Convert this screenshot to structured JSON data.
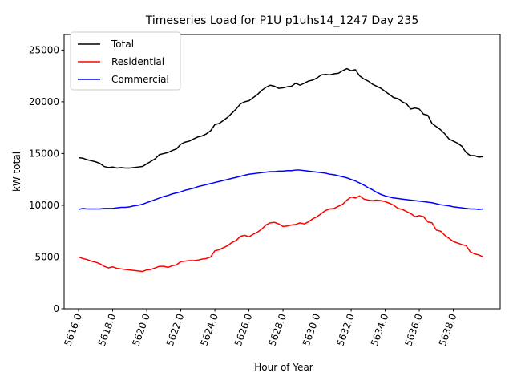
{
  "chart_data": {
    "type": "line",
    "title": "Timeseries Load for P1U p1uhs14_1247  Day 235",
    "xlabel": "Hour of Year",
    "ylabel": "kW total",
    "xlim": [
      5615.15,
      5640.75
    ],
    "ylim": [
      0,
      26500
    ],
    "xticks": [
      5616,
      5618,
      5620,
      5622,
      5624,
      5626,
      5628,
      5630,
      5632,
      5634,
      5636,
      5638
    ],
    "xtick_labels": [
      "5616.0",
      "5618.0",
      "5620.0",
      "5622.0",
      "5624.0",
      "5626.0",
      "5628.0",
      "5630.0",
      "5632.0",
      "5634.0",
      "5636.0",
      "5638.0"
    ],
    "yticks": [
      0,
      5000,
      10000,
      15000,
      20000,
      25000
    ],
    "ytick_labels": [
      "0",
      "5000",
      "10000",
      "15000",
      "20000",
      "25000"
    ],
    "legend_position": "top-left",
    "series": [
      {
        "name": "Total",
        "color": "#000000",
        "x": [
          5616.0,
          5616.25,
          5616.5,
          5616.75,
          5617.0,
          5617.25,
          5617.5,
          5617.75,
          5618.0,
          5618.25,
          5618.5,
          5618.75,
          5619.0,
          5619.25,
          5619.5,
          5619.75,
          5620.0,
          5620.25,
          5620.5,
          5620.75,
          5621.0,
          5621.25,
          5621.5,
          5621.75,
          5622.0,
          5622.25,
          5622.5,
          5622.75,
          5623.0,
          5623.25,
          5623.5,
          5623.75,
          5624.0,
          5624.25,
          5624.5,
          5624.75,
          5625.0,
          5625.25,
          5625.5,
          5625.75,
          5626.0,
          5626.25,
          5626.5,
          5626.75,
          5627.0,
          5627.25,
          5627.5,
          5627.75,
          5628.0,
          5628.25,
          5628.5,
          5628.75,
          5629.0,
          5629.25,
          5629.5,
          5629.75,
          5630.0,
          5630.25,
          5630.5,
          5630.75,
          5631.0,
          5631.25,
          5631.5,
          5631.75,
          5632.0,
          5632.25,
          5632.5,
          5632.75,
          5633.0,
          5633.25,
          5633.5,
          5633.75,
          5634.0,
          5634.25,
          5634.5,
          5634.75,
          5635.0,
          5635.25,
          5635.5,
          5635.75,
          5636.0,
          5636.25,
          5636.5,
          5636.75,
          5637.0,
          5637.25,
          5637.5,
          5637.75,
          5638.0,
          5638.25,
          5638.5,
          5638.75,
          5639.0,
          5639.25,
          5639.5,
          5639.75
        ],
        "values": [
          14600,
          14550,
          14400,
          14300,
          14200,
          14050,
          13750,
          13650,
          13700,
          13600,
          13650,
          13600,
          13600,
          13650,
          13700,
          13750,
          14000,
          14250,
          14500,
          14900,
          15000,
          15100,
          15300,
          15450,
          15900,
          16100,
          16200,
          16400,
          16600,
          16700,
          16900,
          17200,
          17800,
          17900,
          18200,
          18500,
          18900,
          19300,
          19800,
          20000,
          20100,
          20400,
          20700,
          21100,
          21400,
          21600,
          21500,
          21300,
          21350,
          21450,
          21500,
          21800,
          21600,
          21800,
          22000,
          22100,
          22300,
          22600,
          22650,
          22600,
          22700,
          22750,
          23000,
          23200,
          23000,
          23100,
          22500,
          22200,
          22000,
          21700,
          21500,
          21300,
          21000,
          20700,
          20400,
          20300,
          20000,
          19800,
          19300,
          19400,
          19300,
          18800,
          18700,
          17900,
          17600,
          17300,
          16900,
          16400,
          16200,
          16000,
          15700,
          15100,
          14800,
          14800,
          14650,
          14700
        ]
      },
      {
        "name": "Residential",
        "color": "#ff0000",
        "x": [
          5616.0,
          5616.25,
          5616.5,
          5616.75,
          5617.0,
          5617.25,
          5617.5,
          5617.75,
          5618.0,
          5618.25,
          5618.5,
          5618.75,
          5619.0,
          5619.25,
          5619.5,
          5619.75,
          5620.0,
          5620.25,
          5620.5,
          5620.75,
          5621.0,
          5621.25,
          5621.5,
          5621.75,
          5622.0,
          5622.25,
          5622.5,
          5622.75,
          5623.0,
          5623.25,
          5623.5,
          5623.75,
          5624.0,
          5624.25,
          5624.5,
          5624.75,
          5625.0,
          5625.25,
          5625.5,
          5625.75,
          5626.0,
          5626.25,
          5626.5,
          5626.75,
          5627.0,
          5627.25,
          5627.5,
          5627.75,
          5628.0,
          5628.25,
          5628.5,
          5628.75,
          5629.0,
          5629.25,
          5629.5,
          5629.75,
          5630.0,
          5630.25,
          5630.5,
          5630.75,
          5631.0,
          5631.25,
          5631.5,
          5631.75,
          5632.0,
          5632.25,
          5632.5,
          5632.75,
          5633.0,
          5633.25,
          5633.5,
          5633.75,
          5634.0,
          5634.25,
          5634.5,
          5634.75,
          5635.0,
          5635.25,
          5635.5,
          5635.75,
          5636.0,
          5636.25,
          5636.5,
          5636.75,
          5637.0,
          5637.25,
          5637.5,
          5637.75,
          5638.0,
          5638.25,
          5638.5,
          5638.75,
          5639.0,
          5639.25,
          5639.5,
          5639.75
        ],
        "values": [
          5000,
          4850,
          4750,
          4600,
          4500,
          4350,
          4100,
          3950,
          4050,
          3900,
          3850,
          3800,
          3750,
          3700,
          3650,
          3600,
          3750,
          3800,
          3950,
          4100,
          4100,
          4000,
          4150,
          4250,
          4550,
          4600,
          4650,
          4650,
          4700,
          4800,
          4850,
          5000,
          5600,
          5700,
          5900,
          6100,
          6400,
          6600,
          7000,
          7100,
          6950,
          7200,
          7400,
          7700,
          8100,
          8300,
          8350,
          8200,
          7950,
          8000,
          8100,
          8150,
          8300,
          8200,
          8400,
          8700,
          8900,
          9200,
          9500,
          9650,
          9700,
          9900,
          10100,
          10500,
          10800,
          10700,
          10900,
          10600,
          10500,
          10450,
          10500,
          10450,
          10350,
          10200,
          10000,
          9700,
          9600,
          9400,
          9200,
          8900,
          9000,
          8900,
          8400,
          8300,
          7600,
          7500,
          7100,
          6800,
          6500,
          6350,
          6200,
          6100,
          5500,
          5300,
          5200,
          5000
        ]
      },
      {
        "name": "Commercial",
        "color": "#0000ff",
        "x": [
          5616.0,
          5616.25,
          5616.5,
          5616.75,
          5617.0,
          5617.25,
          5617.5,
          5617.75,
          5618.0,
          5618.25,
          5618.5,
          5618.75,
          5619.0,
          5619.25,
          5619.5,
          5619.75,
          5620.0,
          5620.25,
          5620.5,
          5620.75,
          5621.0,
          5621.25,
          5621.5,
          5621.75,
          5622.0,
          5622.25,
          5622.5,
          5622.75,
          5623.0,
          5623.25,
          5623.5,
          5623.75,
          5624.0,
          5624.25,
          5624.5,
          5624.75,
          5625.0,
          5625.25,
          5625.5,
          5625.75,
          5626.0,
          5626.25,
          5626.5,
          5626.75,
          5627.0,
          5627.25,
          5627.5,
          5627.75,
          5628.0,
          5628.25,
          5628.5,
          5628.75,
          5629.0,
          5629.25,
          5629.5,
          5629.75,
          5630.0,
          5630.25,
          5630.5,
          5630.75,
          5631.0,
          5631.25,
          5631.5,
          5631.75,
          5632.0,
          5632.25,
          5632.5,
          5632.75,
          5633.0,
          5633.25,
          5633.5,
          5633.75,
          5634.0,
          5634.25,
          5634.5,
          5634.75,
          5635.0,
          5635.25,
          5635.5,
          5635.75,
          5636.0,
          5636.25,
          5636.5,
          5636.75,
          5637.0,
          5637.25,
          5637.5,
          5637.75,
          5638.0,
          5638.25,
          5638.5,
          5638.75,
          5639.0,
          5639.25,
          5639.5,
          5639.75
        ],
        "values": [
          9600,
          9700,
          9650,
          9650,
          9650,
          9650,
          9700,
          9700,
          9700,
          9750,
          9800,
          9800,
          9850,
          9950,
          10000,
          10100,
          10250,
          10400,
          10550,
          10700,
          10850,
          10950,
          11100,
          11200,
          11300,
          11450,
          11550,
          11650,
          11800,
          11900,
          12000,
          12100,
          12200,
          12300,
          12400,
          12500,
          12600,
          12700,
          12800,
          12900,
          13000,
          13050,
          13100,
          13150,
          13200,
          13250,
          13250,
          13300,
          13300,
          13350,
          13350,
          13400,
          13400,
          13350,
          13300,
          13250,
          13200,
          13150,
          13100,
          13000,
          12950,
          12850,
          12750,
          12650,
          12500,
          12350,
          12150,
          11950,
          11700,
          11500,
          11250,
          11050,
          10900,
          10800,
          10700,
          10650,
          10600,
          10550,
          10500,
          10450,
          10400,
          10350,
          10300,
          10250,
          10150,
          10050,
          10000,
          9950,
          9850,
          9800,
          9750,
          9700,
          9650,
          9650,
          9600,
          9650
        ]
      }
    ]
  }
}
